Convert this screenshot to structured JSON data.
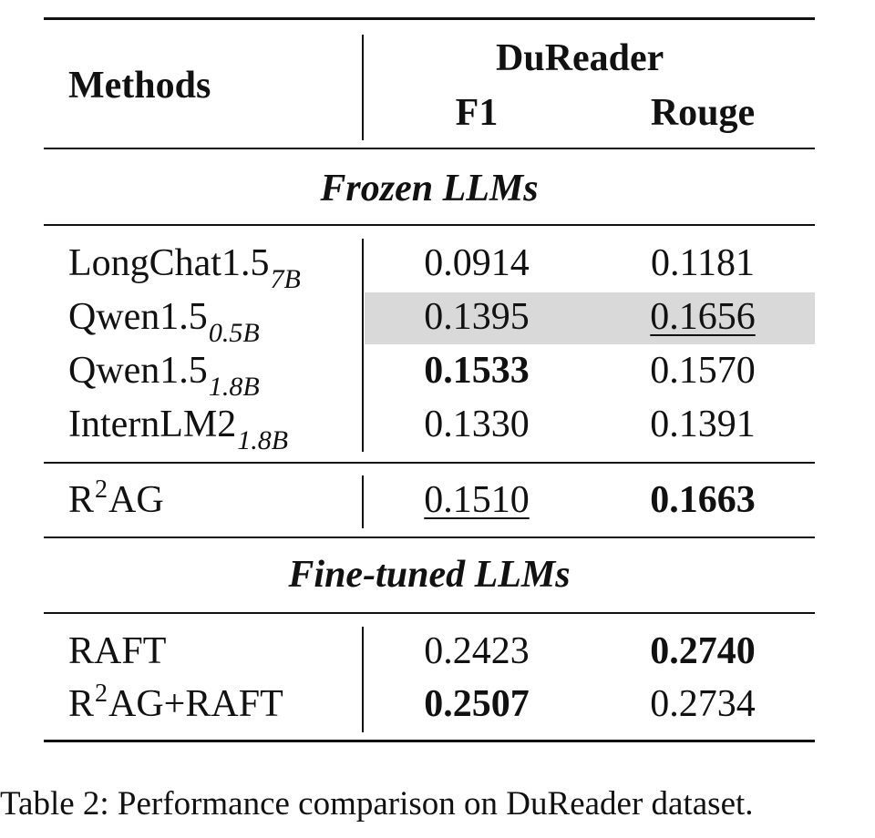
{
  "table": {
    "header": {
      "methods_label": "Methods",
      "dataset_label": "DuReader",
      "col_f1": "F1",
      "col_rouge": "Rouge"
    },
    "sections": {
      "frozen": "Frozen LLMs",
      "finetuned": "Fine-tuned LLMs"
    },
    "rows": [
      {
        "method": "LongChat1.5",
        "subscript": "7B",
        "f1": "0.0914",
        "rouge": "0.1181"
      },
      {
        "method": "Qwen1.5",
        "subscript": "0.5B",
        "f1": "0.1395",
        "rouge": "0.1656"
      },
      {
        "method": "Qwen1.5",
        "subscript": "1.8B",
        "f1": "0.1533",
        "rouge": "0.1570"
      },
      {
        "method": "InternLM2",
        "subscript": "1.8B",
        "f1": "0.1330",
        "rouge": "0.1391"
      },
      {
        "method_prefix": "R",
        "superscript": "2",
        "method_suffix": "AG",
        "f1": "0.1510",
        "rouge": "0.1663"
      },
      {
        "method": "RAFT",
        "f1": "0.2423",
        "rouge": "0.2740"
      },
      {
        "method_prefix": "R",
        "superscript": "2",
        "method_suffix": "AG+RAFT",
        "f1": "0.2507",
        "rouge": "0.2734"
      }
    ]
  },
  "caption": "Table 2: Performance comparison on DuReader dataset."
}
